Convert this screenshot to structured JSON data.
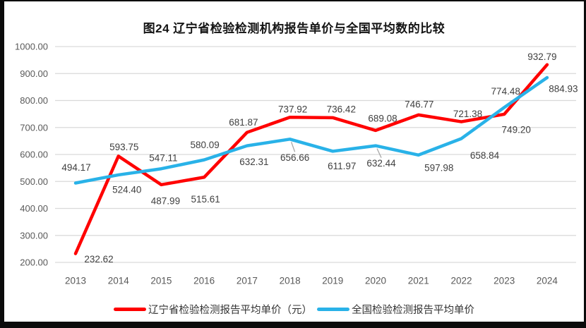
{
  "chart_data": {
    "type": "line",
    "title": "图24 辽宁省检验检测机构报告单价与全国平均数的比较",
    "xlabel": "",
    "ylabel": "",
    "ylim": [
      200,
      1000
    ],
    "y_ticks": [
      "1000.00",
      "900.00",
      "800.00",
      "700.00",
      "600.00",
      "500.00",
      "400.00",
      "300.00",
      "200.00"
    ],
    "grid": true,
    "legend_position": "bottom",
    "categories": [
      "2013",
      "2014",
      "2015",
      "2016",
      "2017",
      "2018",
      "2019",
      "2020",
      "2021",
      "2022",
      "2023",
      "2024"
    ],
    "series": [
      {
        "name": "辽宁省检验检测报告平均单价（元）",
        "color": "#FF0000",
        "values": [
          232.62,
          593.75,
          487.99,
          515.61,
          681.87,
          737.92,
          736.42,
          689.08,
          746.77,
          721.38,
          749.2,
          932.79
        ],
        "label_offsets": [
          [
            33,
            8
          ],
          [
            8,
            -13
          ],
          [
            6,
            23
          ],
          [
            2,
            31
          ],
          [
            -5,
            -14
          ],
          [
            4,
            -11
          ],
          [
            12,
            -12
          ],
          [
            10,
            -17
          ],
          [
            1,
            -15
          ],
          [
            9,
            -11
          ],
          [
            17,
            22
          ],
          [
            -7,
            -11
          ]
        ],
        "leader_indices": []
      },
      {
        "name": "全国检验检测报告平均单价",
        "color": "#29B2E8",
        "values": [
          494.17,
          524.4,
          547.11,
          580.09,
          632.31,
          656.66,
          611.97,
          632.44,
          597.98,
          658.84,
          774.48,
          884.93
        ],
        "label_offsets": [
          [
            1,
            -22
          ],
          [
            12,
            21
          ],
          [
            3,
            -15
          ],
          [
            1,
            -21
          ],
          [
            10,
            23
          ],
          [
            7,
            26
          ],
          [
            13,
            21
          ],
          [
            8,
            25
          ],
          [
            29,
            18
          ],
          [
            33,
            24
          ],
          [
            2,
            -23
          ],
          [
            23,
            16
          ]
        ],
        "leader_indices": [
          5,
          7
        ]
      }
    ],
    "colors": {
      "gridline": "#D9D9D9",
      "axis_text": "#595959",
      "data_label_text": "#3F3F3F",
      "leader_line": "#A6A6A6",
      "frame_border": "#0B0B0B"
    }
  }
}
